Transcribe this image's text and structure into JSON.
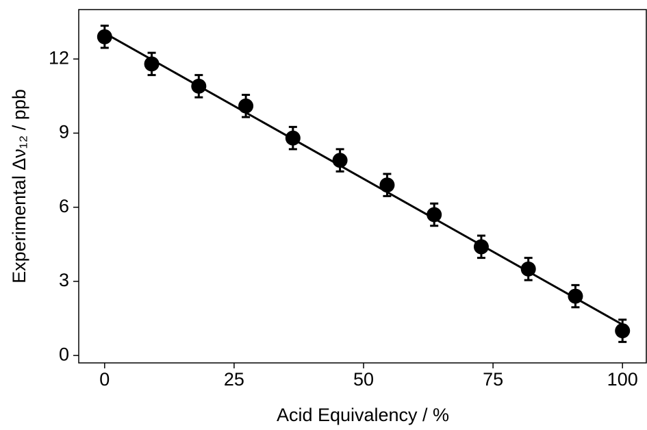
{
  "chart_data": {
    "type": "scatter",
    "x_label": "Acid Equivalency / %",
    "y_label": "Experimental Δν₁₂ / ppb",
    "x": [
      0,
      9.09,
      18.18,
      27.27,
      36.36,
      45.45,
      54.55,
      63.64,
      72.73,
      81.82,
      90.91,
      100
    ],
    "series": [
      {
        "color": "#000000",
        "values": [
          12.9,
          11.8,
          10.9,
          10.1,
          8.8,
          7.9,
          6.9,
          5.7,
          4.4,
          3.5,
          2.4,
          1.0
        ],
        "errors": [
          0.45,
          0.45,
          0.45,
          0.45,
          0.45,
          0.45,
          0.45,
          0.45,
          0.45,
          0.45,
          0.45,
          0.45
        ]
      }
    ],
    "fit": {
      "x": [
        0,
        100
      ],
      "values": [
        13.05,
        1.25
      ],
      "color": "#000000"
    },
    "xlim": [
      -5,
      104.6
    ],
    "ylim": [
      -0.3,
      14
    ],
    "xticks": [
      0,
      25,
      50,
      75,
      100
    ],
    "yticks": [
      0,
      3,
      6,
      9,
      12
    ]
  }
}
